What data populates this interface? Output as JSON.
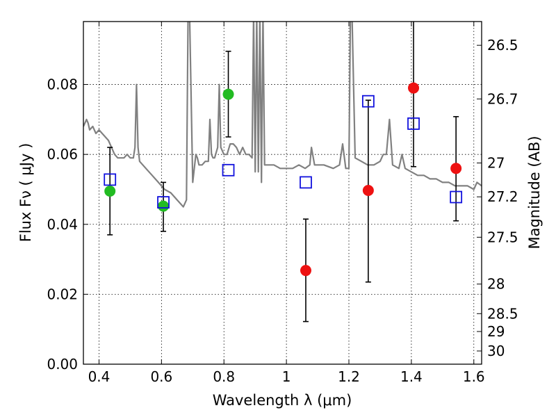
{
  "chart_data": {
    "type": "scatter",
    "title": "",
    "xlabel": "Wavelength  λ (μm)",
    "ylabel": "Flux  Fν  ( μJy )",
    "ylabel2": "Magnitude (AB)",
    "xlim": [
      0.35,
      1.625
    ],
    "ylim": [
      0.0,
      0.098
    ],
    "grid": true,
    "x_ticks": [
      {
        "value": 0.4,
        "label": "0.4"
      },
      {
        "value": 0.6,
        "label": "0.6"
      },
      {
        "value": 0.8,
        "label": "0.8"
      },
      {
        "value": 1.0,
        "label": "1"
      },
      {
        "value": 1.2,
        "label": "1.2"
      },
      {
        "value": 1.4,
        "label": "1.4"
      },
      {
        "value": 1.6,
        "label": "1.6"
      }
    ],
    "y_ticks": [
      {
        "value": 0.0,
        "label": "0.00"
      },
      {
        "value": 0.02,
        "label": "0.02"
      },
      {
        "value": 0.04,
        "label": "0.04"
      },
      {
        "value": 0.06,
        "label": "0.06"
      },
      {
        "value": 0.08,
        "label": "0.08"
      }
    ],
    "mag_ticks": [
      {
        "value": 26.5,
        "label": "26.5"
      },
      {
        "value": 26.7,
        "label": "26.7"
      },
      {
        "value": 27,
        "label": "27"
      },
      {
        "value": 27.2,
        "label": "27.2"
      },
      {
        "value": 27.5,
        "label": "27.5"
      },
      {
        "value": 28,
        "label": "28"
      },
      {
        "value": 28.5,
        "label": "28.5"
      },
      {
        "value": 29,
        "label": "29"
      },
      {
        "value": 30,
        "label": "30"
      }
    ],
    "series": [
      {
        "marker": "circle",
        "color": "#22bb22",
        "points": [
          {
            "x": 0.435,
            "y": 0.0495,
            "yerr_low": 0.037,
            "yerr_high": 0.062
          },
          {
            "x": 0.606,
            "y": 0.0452,
            "yerr_low": 0.038,
            "yerr_high": 0.052
          },
          {
            "x": 0.814,
            "y": 0.0772,
            "yerr_low": 0.065,
            "yerr_high": 0.0895
          }
        ]
      },
      {
        "marker": "circle",
        "color": "#ee1111",
        "points": [
          {
            "x": 1.062,
            "y": 0.0268,
            "yerr_low": 0.0122,
            "yerr_high": 0.0415
          },
          {
            "x": 1.262,
            "y": 0.0497,
            "yerr_low": 0.0235,
            "yerr_high": 0.0755
          },
          {
            "x": 1.407,
            "y": 0.079,
            "yerr_low": 0.0565,
            "yerr_high": 0.1
          },
          {
            "x": 1.543,
            "y": 0.056,
            "yerr_low": 0.041,
            "yerr_high": 0.0708
          }
        ]
      },
      {
        "marker": "open-square",
        "color": "#1111dd",
        "points": [
          {
            "x": 0.435,
            "y": 0.0528
          },
          {
            "x": 0.606,
            "y": 0.0463
          },
          {
            "x": 0.814,
            "y": 0.0555
          },
          {
            "x": 1.062,
            "y": 0.052
          },
          {
            "x": 1.262,
            "y": 0.0752
          },
          {
            "x": 1.407,
            "y": 0.0688
          },
          {
            "x": 1.543,
            "y": 0.0478
          }
        ]
      }
    ],
    "model_spectrum": {
      "color": "#808080",
      "x": [
        0.35,
        0.36,
        0.365,
        0.37,
        0.38,
        0.39,
        0.4,
        0.41,
        0.42,
        0.43,
        0.44,
        0.45,
        0.46,
        0.47,
        0.48,
        0.49,
        0.5,
        0.51,
        0.515,
        0.52,
        0.525,
        0.53,
        0.55,
        0.57,
        0.59,
        0.61,
        0.63,
        0.65,
        0.67,
        0.68,
        0.685,
        0.69,
        0.7,
        0.71,
        0.715,
        0.72,
        0.73,
        0.74,
        0.75,
        0.755,
        0.76,
        0.765,
        0.77,
        0.78,
        0.785,
        0.79,
        0.8,
        0.81,
        0.82,
        0.83,
        0.84,
        0.85,
        0.86,
        0.87,
        0.88,
        0.89,
        0.895,
        0.9,
        0.905,
        0.91,
        0.915,
        0.92,
        0.925,
        0.93,
        0.94,
        0.96,
        0.98,
        1.0,
        1.02,
        1.04,
        1.06,
        1.075,
        1.08,
        1.09,
        1.12,
        1.15,
        1.17,
        1.18,
        1.19,
        1.2,
        1.205,
        1.21,
        1.22,
        1.24,
        1.26,
        1.28,
        1.3,
        1.31,
        1.32,
        1.33,
        1.34,
        1.36,
        1.37,
        1.38,
        1.4,
        1.42,
        1.44,
        1.46,
        1.48,
        1.5,
        1.52,
        1.54,
        1.56,
        1.58,
        1.6,
        1.61,
        1.625
      ],
      "y": [
        0.068,
        0.07,
        0.069,
        0.067,
        0.068,
        0.066,
        0.067,
        0.066,
        0.065,
        0.064,
        0.062,
        0.06,
        0.059,
        0.059,
        0.059,
        0.06,
        0.059,
        0.059,
        0.062,
        0.08,
        0.062,
        0.058,
        0.056,
        0.054,
        0.052,
        0.05,
        0.049,
        0.047,
        0.045,
        0.047,
        0.1,
        0.1,
        0.052,
        0.06,
        0.059,
        0.057,
        0.057,
        0.058,
        0.058,
        0.07,
        0.06,
        0.059,
        0.059,
        0.062,
        0.08,
        0.062,
        0.06,
        0.06,
        0.063,
        0.063,
        0.062,
        0.06,
        0.062,
        0.06,
        0.06,
        0.059,
        0.1,
        0.055,
        0.1,
        0.055,
        0.1,
        0.052,
        0.1,
        0.057,
        0.057,
        0.057,
        0.056,
        0.056,
        0.056,
        0.057,
        0.056,
        0.057,
        0.062,
        0.057,
        0.057,
        0.056,
        0.057,
        0.063,
        0.056,
        0.056,
        0.1,
        0.1,
        0.059,
        0.058,
        0.057,
        0.057,
        0.058,
        0.06,
        0.06,
        0.07,
        0.057,
        0.056,
        0.06,
        0.056,
        0.055,
        0.054,
        0.054,
        0.053,
        0.053,
        0.052,
        0.052,
        0.051,
        0.051,
        0.051,
        0.05,
        0.052,
        0.051
      ]
    }
  }
}
